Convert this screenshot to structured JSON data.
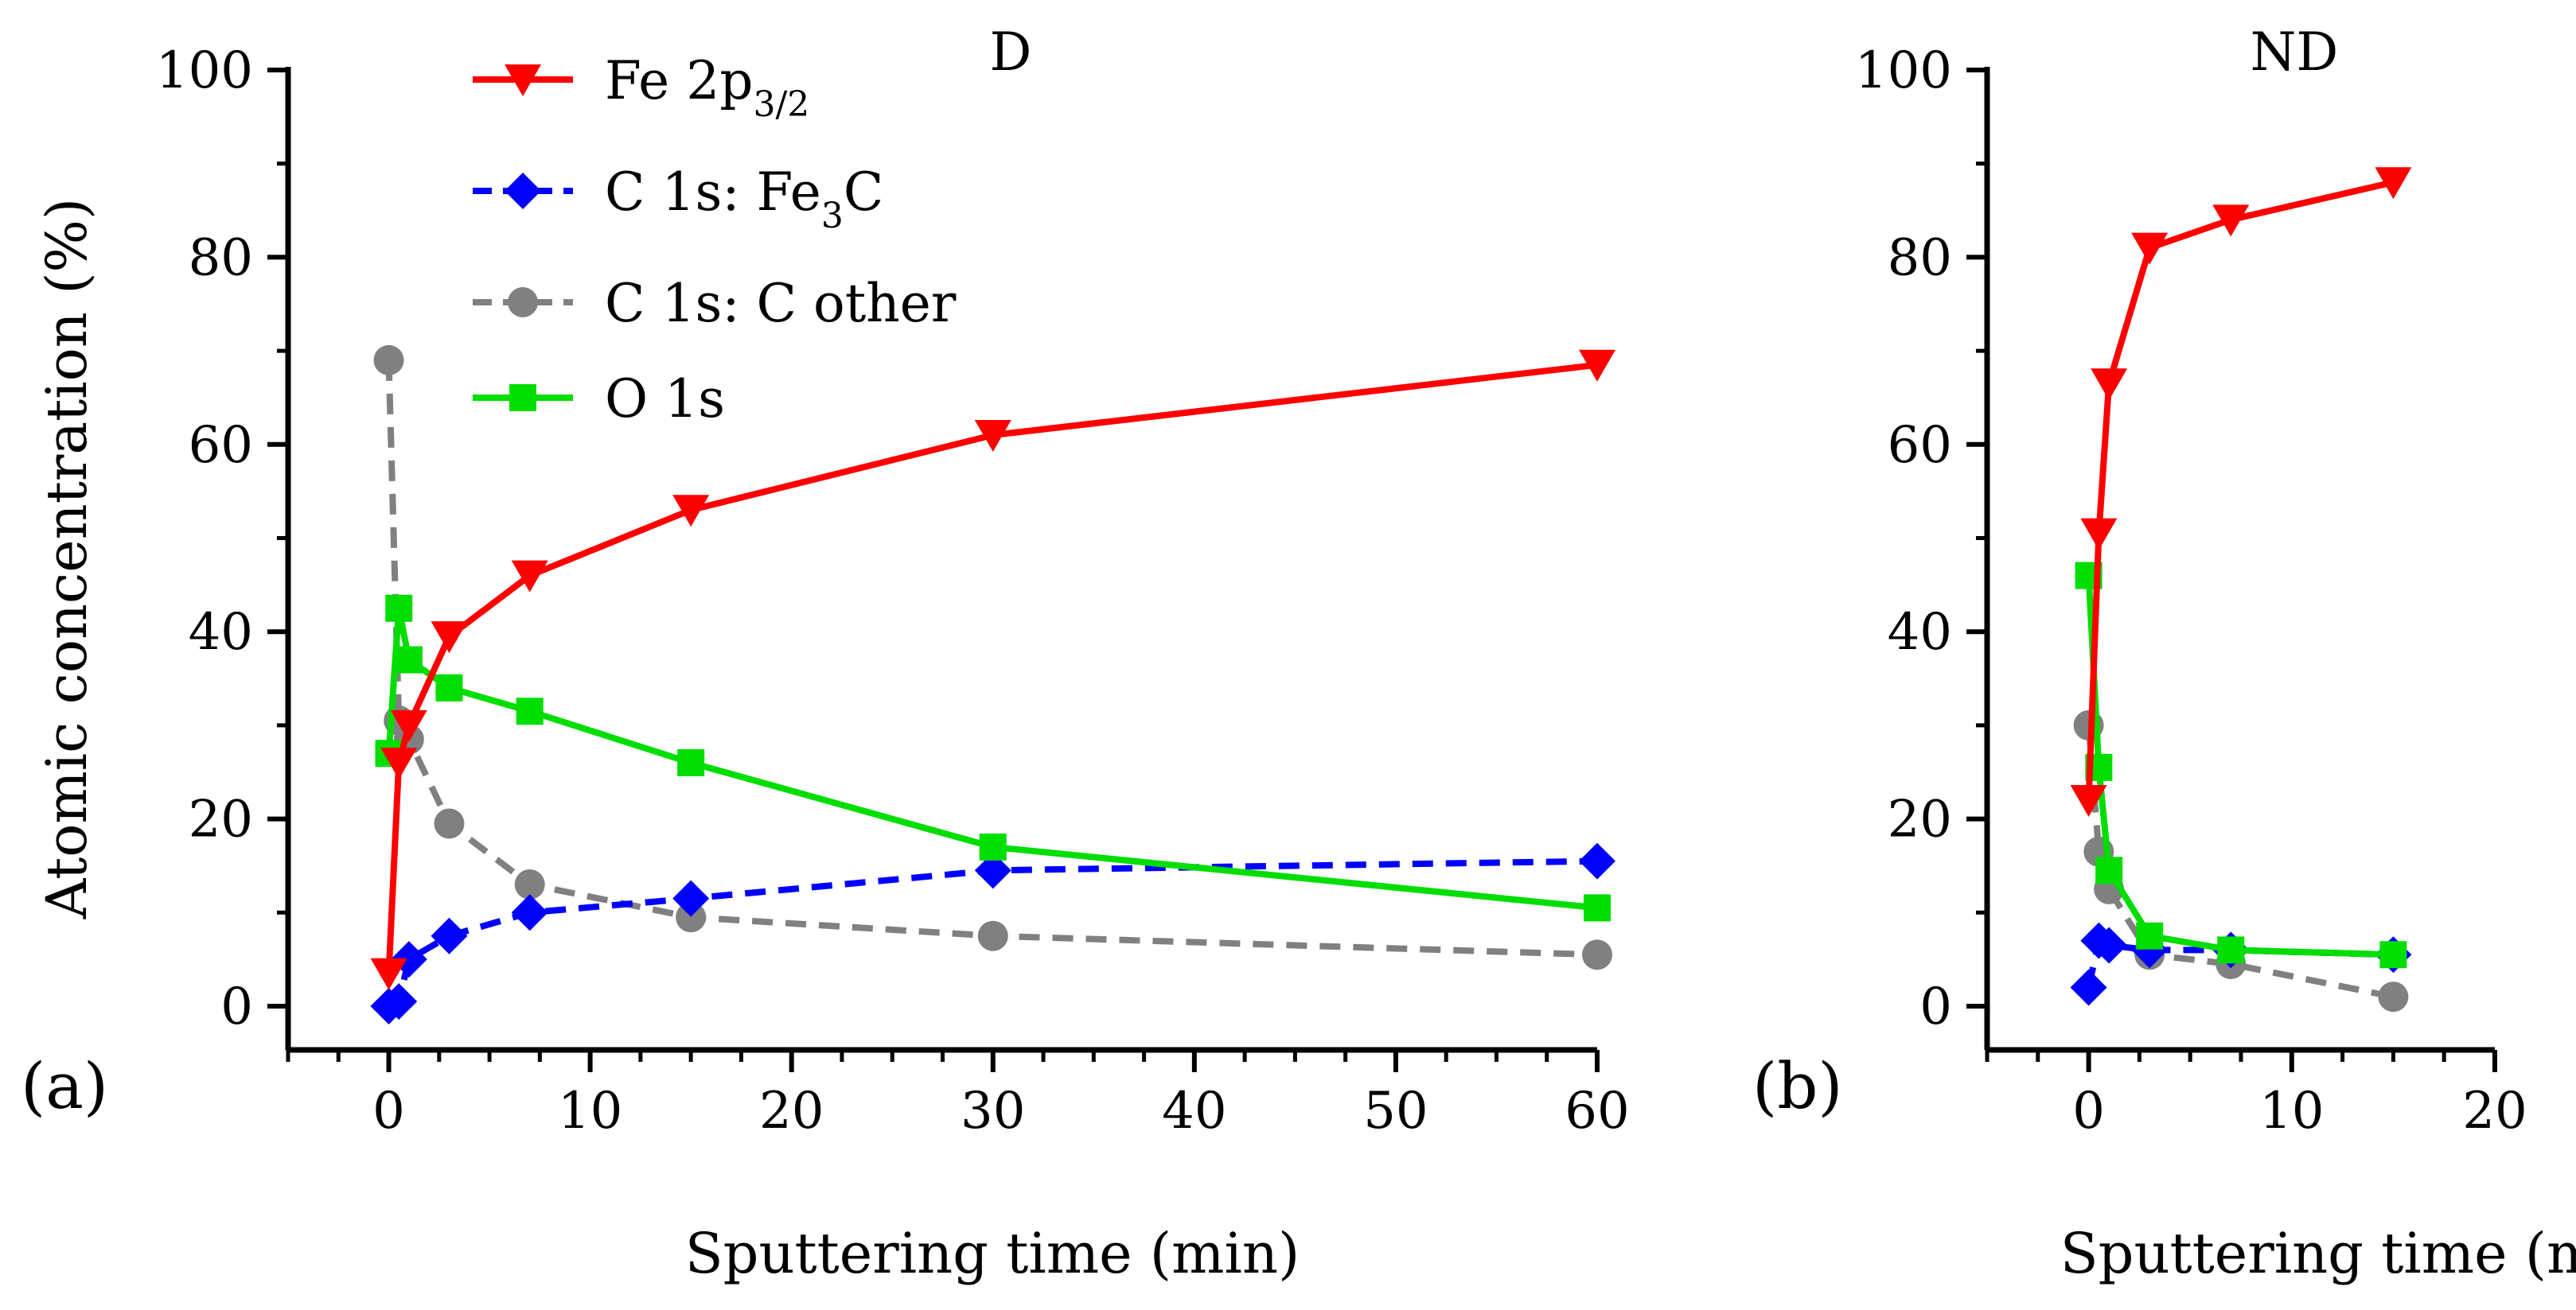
{
  "chart_data": [
    {
      "panel": "(a)",
      "type": "line",
      "title": "D",
      "xlabel": "Sputtering time (min)",
      "ylabel": "Atomic concentration (%)",
      "xlim": [
        -5,
        60
      ],
      "ylim": [
        0,
        100
      ],
      "xticks": [
        0,
        10,
        20,
        30,
        40,
        50,
        60
      ],
      "yticks": [
        0,
        20,
        40,
        60,
        80,
        100
      ],
      "series": [
        {
          "name": "Fe 2p3/2",
          "color": "#ff0000",
          "marker": "triangle-down",
          "dash": "solid",
          "x": [
            0,
            0.5,
            1,
            3,
            7,
            15,
            30,
            60
          ],
          "y": [
            3.5,
            26,
            30,
            39.5,
            46,
            53,
            61,
            68.5
          ]
        },
        {
          "name": "C 1s: Fe3C",
          "color": "#0000ff",
          "marker": "diamond",
          "dash": "dashed",
          "x": [
            0,
            0.5,
            1,
            3,
            7,
            15,
            30,
            60
          ],
          "y": [
            0,
            0.5,
            5,
            7.5,
            10,
            11.5,
            14.5,
            15.5
          ]
        },
        {
          "name": "C 1s: C other",
          "color": "#808080",
          "marker": "circle",
          "dash": "dashed",
          "x": [
            0,
            0.5,
            1,
            3,
            7,
            15,
            30,
            60
          ],
          "y": [
            69,
            30.5,
            28.5,
            19.5,
            13,
            9.5,
            7.5,
            5.5
          ]
        },
        {
          "name": "O 1s",
          "color": "#00dd00",
          "marker": "square",
          "dash": "solid",
          "x": [
            0,
            0.5,
            1,
            3,
            7,
            15,
            30,
            60
          ],
          "y": [
            27,
            42.5,
            37,
            34,
            31.5,
            26,
            17,
            10.5
          ]
        }
      ]
    },
    {
      "panel": "(b)",
      "type": "line",
      "title": "ND",
      "xlabel": "Sputtering time (min)",
      "ylabel": "",
      "xlim": [
        -5,
        20
      ],
      "ylim": [
        0,
        100
      ],
      "xticks": [
        0,
        10,
        20
      ],
      "yticks": [
        0,
        20,
        40,
        60,
        80,
        100
      ],
      "series": [
        {
          "name": "Fe 2p3/2",
          "color": "#ff0000",
          "marker": "triangle-down",
          "dash": "solid",
          "x": [
            0,
            0.5,
            1,
            3,
            7,
            15
          ],
          "y": [
            22,
            50.5,
            66.5,
            81,
            84,
            88
          ]
        },
        {
          "name": "C 1s: Fe3C",
          "color": "#0000ff",
          "marker": "diamond",
          "dash": "dashed",
          "x": [
            0,
            0.5,
            1,
            3,
            7,
            15
          ],
          "y": [
            2,
            7,
            6.5,
            6,
            6,
            5.5
          ]
        },
        {
          "name": "C 1s: C other",
          "color": "#808080",
          "marker": "circle",
          "dash": "dashed",
          "x": [
            0,
            0.5,
            1,
            3,
            7,
            15
          ],
          "y": [
            30,
            16.5,
            12.5,
            5.5,
            4.5,
            1
          ]
        },
        {
          "name": "O 1s",
          "color": "#00dd00",
          "marker": "square",
          "dash": "solid",
          "x": [
            0,
            0.5,
            1,
            3,
            7,
            15
          ],
          "y": [
            46,
            25.5,
            14.5,
            7.5,
            6,
            5.5
          ]
        }
      ]
    }
  ],
  "legend": {
    "location": "upper-left of panel (a)",
    "items": [
      {
        "base": "Fe 2p",
        "sub": "3/2",
        "rest": ""
      },
      {
        "base": "C 1s: Fe",
        "sub": "3",
        "rest": "C"
      },
      {
        "base": "C 1s: C other",
        "sub": "",
        "rest": ""
      },
      {
        "base": "O 1s",
        "sub": "",
        "rest": ""
      }
    ]
  }
}
